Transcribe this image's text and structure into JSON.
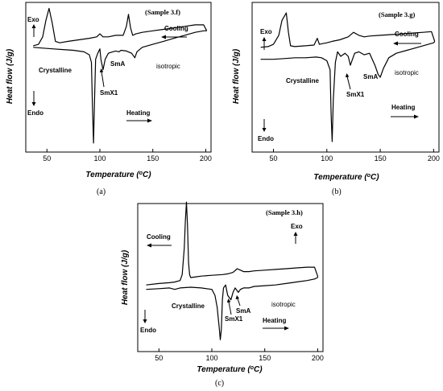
{
  "chart_data": [
    {
      "type": "line",
      "title": "(Sample 3.f)",
      "caption": "(a)",
      "xlabel": "Temperature (°C)",
      "ylabel": "Heat flow (J/g)",
      "xlim": [
        30,
        205
      ],
      "ylim": [
        0,
        10
      ],
      "x_ticks": [
        50,
        100,
        150,
        200
      ],
      "series": [
        {
          "x": [
            37,
            42,
            46,
            49,
            52,
            55,
            58,
            62,
            70,
            80,
            90,
            97,
            100,
            103,
            108,
            115,
            122,
            125,
            127,
            129,
            131,
            134,
            140,
            150,
            160,
            170,
            180,
            190,
            198,
            201
          ],
          "y": [
            7.1,
            7.2,
            7.7,
            8.8,
            9.6,
            8.6,
            7.4,
            7.3,
            7.4,
            7.5,
            7.6,
            7.7,
            7.9,
            7.7,
            7.7,
            7.8,
            7.8,
            8.4,
            9.2,
            8.3,
            7.8,
            7.9,
            8.0,
            8.1,
            8.2,
            8.3,
            8.4,
            8.5,
            8.5,
            8.1
          ]
        },
        {
          "x": [
            37,
            45,
            55,
            65,
            75,
            85,
            90,
            92,
            93,
            94,
            95,
            96,
            98,
            100,
            101,
            103,
            105,
            108,
            112,
            115,
            118,
            120,
            125,
            130,
            133,
            135,
            140,
            150,
            160,
            170,
            180,
            190,
            198,
            201
          ],
          "y": [
            7.0,
            6.95,
            6.9,
            6.85,
            6.8,
            6.7,
            6.5,
            6.0,
            3.0,
            0.6,
            3.5,
            6.2,
            6.6,
            6.9,
            6.2,
            5.5,
            6.2,
            6.6,
            6.7,
            6.75,
            6.7,
            6.8,
            6.75,
            6.6,
            6.3,
            6.7,
            7.0,
            7.2,
            7.4,
            7.6,
            7.8,
            8.0,
            8.1,
            8.1
          ]
        }
      ],
      "annotations": [
        "Exo",
        "Endo",
        "Cooling",
        "Heating",
        "Crystalline",
        "SmA",
        "SmX1",
        "isotropic"
      ]
    },
    {
      "type": "line",
      "title": "(Sample 3.g)",
      "caption": "(b)",
      "xlabel": "Temperature (°C)",
      "ylabel": "Heat flow (J/g)",
      "xlim": [
        30,
        205
      ],
      "ylim": [
        0,
        10
      ],
      "x_ticks": [
        50,
        100,
        150,
        200
      ],
      "series": [
        {
          "x": [
            38,
            45,
            50,
            55,
            58,
            62,
            64,
            66,
            70,
            80,
            88,
            91,
            93,
            96,
            100,
            105,
            112,
            120,
            125,
            130,
            135,
            140,
            150,
            160,
            170,
            180,
            190,
            198,
            201
          ],
          "y": [
            7.0,
            7.05,
            7.2,
            7.8,
            8.8,
            9.3,
            8.0,
            7.1,
            7.05,
            7.1,
            7.15,
            7.6,
            7.2,
            7.25,
            7.3,
            7.4,
            7.5,
            7.7,
            8.0,
            7.8,
            7.7,
            7.75,
            7.8,
            7.85,
            7.9,
            7.95,
            8.0,
            8.05,
            7.4
          ]
        },
        {
          "x": [
            38,
            50,
            60,
            70,
            80,
            90,
            95,
            100,
            103,
            104,
            105,
            106,
            108,
            110,
            113,
            117,
            120,
            122,
            124,
            126,
            130,
            135,
            140,
            145,
            148,
            150,
            153,
            158,
            165,
            175,
            185,
            195,
            200,
            201
          ],
          "y": [
            6.2,
            6.2,
            6.25,
            6.3,
            6.3,
            6.35,
            6.3,
            6.1,
            5.5,
            2.5,
            0.7,
            3.5,
            6.0,
            6.7,
            6.4,
            6.6,
            6.4,
            5.8,
            6.2,
            6.6,
            6.7,
            6.5,
            6.6,
            5.8,
            5.2,
            5.0,
            5.6,
            6.3,
            6.6,
            6.8,
            7.0,
            7.2,
            7.3,
            7.4
          ]
        }
      ],
      "annotations": [
        "Exo",
        "Endo",
        "Cooling",
        "Heating",
        "Crystalline",
        "SmA",
        "SmX1",
        "isotropic"
      ]
    },
    {
      "type": "line",
      "title": "(Sample 3.h)",
      "caption": "(c)",
      "xlabel": "Temperature (°C)",
      "ylabel": "Heat flow (J/g)",
      "xlim": [
        30,
        205
      ],
      "ylim": [
        0,
        10
      ],
      "x_ticks": [
        50,
        100,
        150,
        200
      ],
      "series": [
        {
          "x": [
            38,
            50,
            60,
            65,
            70,
            72,
            74,
            75,
            76,
            77,
            78,
            79,
            80,
            85,
            90,
            100,
            110,
            115,
            120,
            124,
            127,
            130,
            135,
            140,
            150,
            160,
            170,
            180,
            190,
            197,
            200
          ],
          "y": [
            4.5,
            4.6,
            4.65,
            4.7,
            4.8,
            5.2,
            7.0,
            8.8,
            10.1,
            8.5,
            6.0,
            5.2,
            5.0,
            5.05,
            5.1,
            5.15,
            5.2,
            5.25,
            5.35,
            5.6,
            5.5,
            5.4,
            5.4,
            5.45,
            5.5,
            5.55,
            5.6,
            5.65,
            5.7,
            5.7,
            5.1
          ]
        },
        {
          "x": [
            38,
            50,
            60,
            65,
            70,
            80,
            90,
            100,
            103,
            105,
            107,
            108,
            109,
            110,
            111,
            113,
            115,
            118,
            120,
            122,
            125,
            127,
            130,
            135,
            140,
            150,
            160,
            170,
            180,
            190,
            197,
            200
          ],
          "y": [
            4.2,
            4.25,
            4.3,
            4.2,
            4.3,
            4.35,
            4.3,
            4.2,
            3.8,
            3.0,
            1.6,
            0.8,
            1.5,
            3.5,
            4.3,
            4.5,
            3.8,
            3.5,
            4.0,
            4.3,
            4.0,
            4.2,
            4.3,
            4.3,
            4.4,
            4.45,
            4.5,
            4.6,
            4.7,
            4.8,
            4.9,
            5.0
          ]
        }
      ],
      "annotations": [
        "Exo",
        "Endo",
        "Cooling",
        "Heating",
        "Crystalline",
        "SmA",
        "SmX1",
        "isotropic"
      ]
    }
  ]
}
